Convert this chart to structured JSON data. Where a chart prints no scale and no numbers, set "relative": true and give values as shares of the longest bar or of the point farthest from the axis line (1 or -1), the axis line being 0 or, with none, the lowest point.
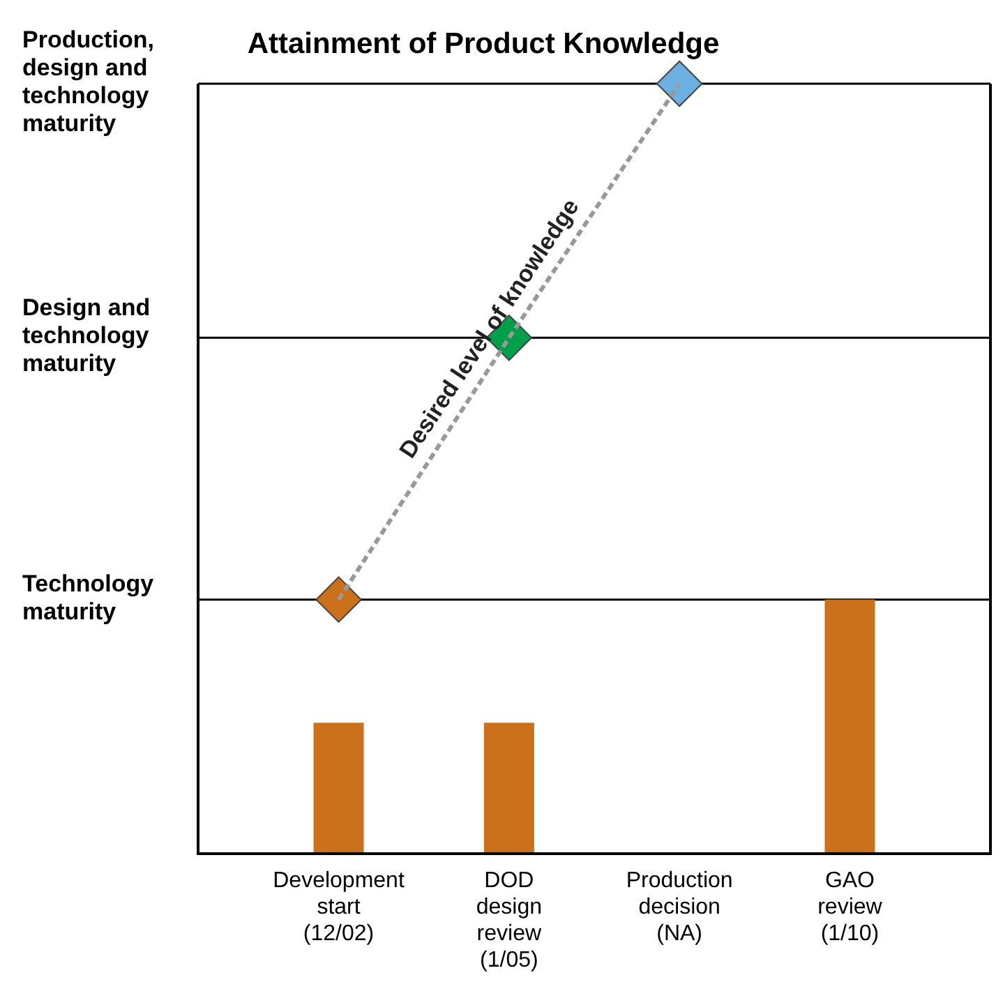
{
  "chart_data": {
    "type": "bar",
    "title": "Attainment of Product Knowledge",
    "relative": true,
    "categories": [
      "Development start (12/02)",
      "DOD design review (1/05)",
      "Production decision (NA)",
      "GAO review (1/10)"
    ],
    "series": [
      {
        "color": "#cc711b",
        "values": [
          0.17,
          0.17,
          null,
          0.33
        ]
      },
      {
        "type": "line",
        "name": "Desired level of knowledge",
        "color": "#999999",
        "colors": [
          "#cc711b",
          "#00a04b",
          "#6cb0e2",
          null
        ],
        "marker": "diamond",
        "line_style": "dashed",
        "values": [
          0.33,
          0.67,
          1,
          null
        ]
      }
    ],
    "ref_lines": [
      {
        "axis": "y",
        "value": 0.33,
        "label": "Technology maturity",
        "color": "#000000"
      },
      {
        "axis": "y",
        "value": 0.67,
        "label": "Design and technology maturity",
        "color": "#000000"
      },
      {
        "axis": "y",
        "value": 1,
        "label": "Production, design and technology maturity",
        "color": "#000000"
      }
    ],
    "legend": false
  }
}
